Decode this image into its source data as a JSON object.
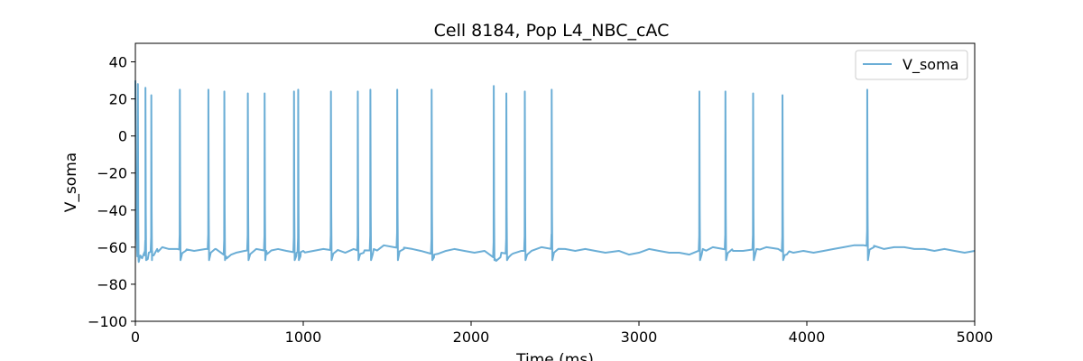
{
  "chart_data": {
    "type": "line",
    "title": "Cell 8184, Pop L4_NBC_cAC",
    "xlabel": "Time (ms)",
    "ylabel": "V_soma",
    "xlim": [
      0,
      5000
    ],
    "ylim": [
      -100,
      50
    ],
    "xticks": [
      0,
      1000,
      2000,
      3000,
      4000,
      5000
    ],
    "yticks": [
      -100,
      -80,
      -60,
      -40,
      -20,
      0,
      20,
      40
    ],
    "grid": false,
    "legend_position": "top-right",
    "series": [
      {
        "name": "V_soma",
        "color": "#6baed6",
        "baseline": [
          [
            0,
            30
          ],
          [
            6,
            -50
          ],
          [
            12,
            -65
          ],
          [
            20,
            -68
          ],
          [
            40,
            -66
          ],
          [
            60,
            -64
          ],
          [
            80,
            -63
          ],
          [
            100,
            -62
          ],
          [
            130,
            -61
          ],
          [
            160,
            -60
          ],
          [
            200,
            -61
          ],
          [
            250,
            -61
          ],
          [
            300,
            -62
          ],
          [
            350,
            -62
          ],
          [
            420,
            -61
          ],
          [
            480,
            -61
          ],
          [
            540,
            -65
          ],
          [
            600,
            -63
          ],
          [
            650,
            -62
          ],
          [
            720,
            -61
          ],
          [
            780,
            -62
          ],
          [
            850,
            -61
          ],
          [
            900,
            -62
          ],
          [
            960,
            -63
          ],
          [
            1000,
            -62
          ],
          [
            1060,
            -62
          ],
          [
            1120,
            -61
          ],
          [
            1200,
            -62
          ],
          [
            1250,
            -63
          ],
          [
            1300,
            -61
          ],
          [
            1360,
            -63
          ],
          [
            1420,
            -61
          ],
          [
            1480,
            -59
          ],
          [
            1540,
            -60
          ],
          [
            1600,
            -61
          ],
          [
            1650,
            -61
          ],
          [
            1700,
            -62
          ],
          [
            1780,
            -64
          ],
          [
            1850,
            -62
          ],
          [
            1900,
            -61
          ],
          [
            1960,
            -62
          ],
          [
            2020,
            -63
          ],
          [
            2080,
            -62
          ],
          [
            2140,
            -66
          ],
          [
            2180,
            -63
          ],
          [
            2240,
            -64
          ],
          [
            2300,
            -62
          ],
          [
            2360,
            -62
          ],
          [
            2420,
            -60
          ],
          [
            2480,
            -61
          ],
          [
            2560,
            -61
          ],
          [
            2620,
            -62
          ],
          [
            2680,
            -61
          ],
          [
            2740,
            -62
          ],
          [
            2800,
            -63
          ],
          [
            2880,
            -62
          ],
          [
            2940,
            -64
          ],
          [
            3000,
            -63
          ],
          [
            3060,
            -61
          ],
          [
            3120,
            -62
          ],
          [
            3180,
            -63
          ],
          [
            3240,
            -63
          ],
          [
            3300,
            -64
          ],
          [
            3380,
            -61
          ],
          [
            3440,
            -60
          ],
          [
            3500,
            -61
          ],
          [
            3560,
            -62
          ],
          [
            3620,
            -62
          ],
          [
            3700,
            -61
          ],
          [
            3760,
            -60
          ],
          [
            3830,
            -61
          ],
          [
            3880,
            -64
          ],
          [
            3920,
            -63
          ],
          [
            3980,
            -62
          ],
          [
            4040,
            -63
          ],
          [
            4100,
            -62
          ],
          [
            4160,
            -61
          ],
          [
            4220,
            -60
          ],
          [
            4280,
            -59
          ],
          [
            4340,
            -59
          ],
          [
            4400,
            -60
          ],
          [
            4460,
            -61
          ],
          [
            4520,
            -60
          ],
          [
            4580,
            -60
          ],
          [
            4640,
            -61
          ],
          [
            4700,
            -61
          ],
          [
            4760,
            -62
          ],
          [
            4820,
            -61
          ],
          [
            4880,
            -62
          ],
          [
            4940,
            -63
          ],
          [
            5000,
            -62
          ]
        ],
        "spikes": [
          [
            15,
            28
          ],
          [
            60,
            26
          ],
          [
            95,
            22
          ],
          [
            265,
            25
          ],
          [
            435,
            25
          ],
          [
            530,
            24
          ],
          [
            670,
            23
          ],
          [
            770,
            23
          ],
          [
            945,
            24
          ],
          [
            970,
            25
          ],
          [
            1165,
            24
          ],
          [
            1325,
            24
          ],
          [
            1400,
            25
          ],
          [
            1560,
            25
          ],
          [
            1765,
            25
          ],
          [
            2135,
            27
          ],
          [
            2210,
            23
          ],
          [
            2320,
            24
          ],
          [
            2480,
            25
          ],
          [
            3360,
            24
          ],
          [
            3515,
            24
          ],
          [
            3680,
            23
          ],
          [
            3855,
            22
          ],
          [
            4360,
            25
          ]
        ]
      }
    ]
  }
}
